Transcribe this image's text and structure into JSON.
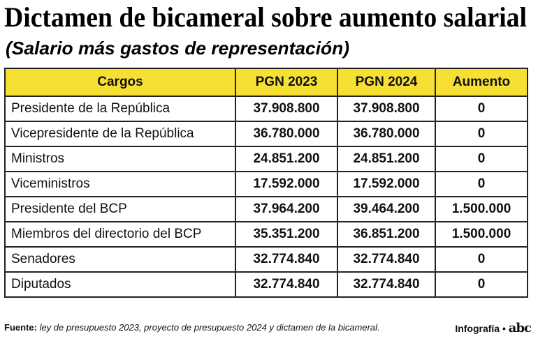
{
  "header": {
    "title": "Dictamen de bicameral sobre aumento salarial",
    "subtitle": "(Salario más gastos de representación)"
  },
  "table": {
    "columns": [
      "Cargos",
      "PGN 2023",
      "PGN 2024",
      "Aumento"
    ],
    "rows": [
      [
        "Presidente de la República",
        "37.908.800",
        "37.908.800",
        "0"
      ],
      [
        "Vicepresidente de la República",
        "36.780.000",
        "36.780.000",
        "0"
      ],
      [
        "Ministros",
        "24.851.200",
        "24.851.200",
        "0"
      ],
      [
        "Viceministros",
        "17.592.000",
        "17.592.000",
        "0"
      ],
      [
        "Presidente del BCP",
        "37.964.200",
        "39.464.200",
        "1.500.000"
      ],
      [
        "Miembros del directorio del BCP",
        "35.351.200",
        "36.851.200",
        "1.500.000"
      ],
      [
        "Senadores",
        "32.774.840",
        "32.774.840",
        "0"
      ],
      [
        "Diputados",
        "32.774.840",
        "32.774.840",
        "0"
      ]
    ]
  },
  "footer": {
    "source_label": "Fuente:",
    "source": "ley de presupuesto 2023, proyecto de presupuesto 2024 y dictamen de la bicameral.",
    "credit": "Infografía •",
    "logo": "abc"
  }
}
